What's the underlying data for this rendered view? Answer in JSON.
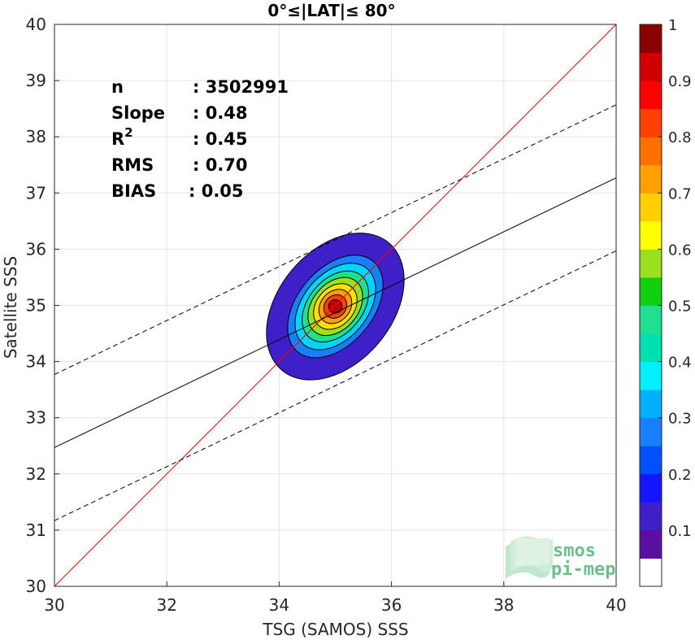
{
  "chart_data": {
    "type": "contour",
    "title": "0°≤|LAT|≤ 80°",
    "xlabel": "TSG (SAMOS) SSS",
    "ylabel": "Satellite SSS",
    "xlim": [
      30,
      40
    ],
    "ylim": [
      30,
      40
    ],
    "xticks": [
      30,
      32,
      34,
      36,
      38,
      40
    ],
    "yticks": [
      30,
      31,
      32,
      33,
      34,
      35,
      36,
      37,
      38,
      39,
      40
    ],
    "grid": true,
    "stats": [
      {
        "label": "n",
        "value": ": 3502991"
      },
      {
        "label": "Slope",
        "value": ": 0.48"
      },
      {
        "label": "R",
        "sup": "2",
        "value": ": 0.45"
      },
      {
        "label": "RMS",
        "value": ": 0.70"
      },
      {
        "label": "BIAS",
        "value": ": 0.05"
      }
    ],
    "lines": {
      "identity": {
        "slope": 1.0,
        "intercept": 0.0,
        "color": "#ff0000"
      },
      "fit": {
        "slope": 0.48,
        "intercept": 18.07,
        "color": "#000000"
      },
      "fit_upper": {
        "slope": 0.48,
        "intercept": 19.37,
        "style": "dashed"
      },
      "fit_lower": {
        "slope": 0.48,
        "intercept": 16.77,
        "style": "dashed"
      }
    },
    "density_center": {
      "x": 35.0,
      "y": 34.98
    },
    "density_levels": [
      {
        "level": 0.05,
        "color": "#3f20c8",
        "x_half_width": 1.48,
        "y_half_height": 0.42
      },
      {
        "level": 0.25,
        "color": "#1a7fff",
        "x_half_width": 1.05,
        "y_half_height": 0.28
      },
      {
        "level": 0.35,
        "color": "#00d4ff",
        "x_half_width": 0.88,
        "y_half_height": 0.24
      },
      {
        "level": 0.45,
        "color": "#1fe090",
        "x_half_width": 0.72,
        "y_half_height": 0.2
      },
      {
        "level": 0.55,
        "color": "#9be01f",
        "x_half_width": 0.58,
        "y_half_height": 0.17
      },
      {
        "level": 0.65,
        "color": "#ffe000",
        "x_half_width": 0.45,
        "y_half_height": 0.14
      },
      {
        "level": 0.75,
        "color": "#ffa000",
        "x_half_width": 0.33,
        "y_half_height": 0.11
      },
      {
        "level": 0.85,
        "color": "#ff4000",
        "x_half_width": 0.22,
        "y_half_height": 0.08
      },
      {
        "level": 0.95,
        "color": "#c00000",
        "x_half_width": 0.12,
        "y_half_height": 0.05
      }
    ],
    "colorbar": {
      "min": 0,
      "max": 1,
      "ticks": [
        "0.1",
        "0.2",
        "0.3",
        "0.4",
        "0.5",
        "0.6",
        "0.7",
        "0.8",
        "0.9",
        "1"
      ],
      "tick_values": [
        0.1,
        0.2,
        0.3,
        0.4,
        0.5,
        0.6,
        0.7,
        0.8,
        0.9,
        1.0
      ],
      "colors": [
        "#ffffff",
        "#5a0fa0",
        "#3f20c8",
        "#1515ff",
        "#0050ff",
        "#1a7fff",
        "#00b0ff",
        "#00f0ff",
        "#00e0b0",
        "#1fe090",
        "#10d010",
        "#9be01f",
        "#ffff00",
        "#ffd000",
        "#ffa000",
        "#ff7000",
        "#ff4000",
        "#ff0000",
        "#d00000",
        "#8b0000"
      ]
    }
  },
  "logo": {
    "line1": "smos",
    "line2": "pi-mep"
  }
}
